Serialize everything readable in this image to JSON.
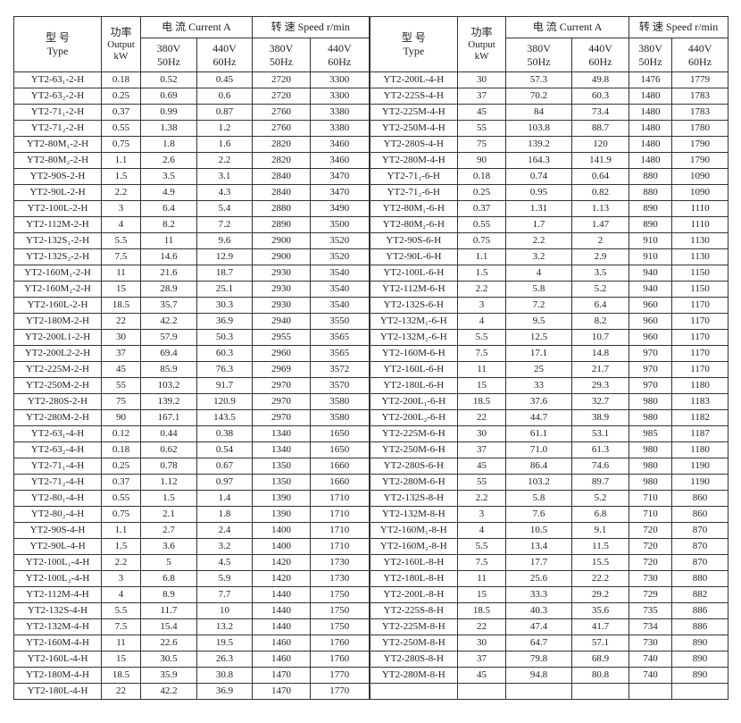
{
  "left": {
    "header": {
      "type": [
        "型 号",
        "Type"
      ],
      "power": [
        "功率",
        "Output",
        "kW"
      ],
      "current": "电 流 Current A",
      "speed": "转 速 Speed r/min",
      "v380": [
        "380V",
        "50Hz"
      ],
      "v440": [
        "440V",
        "60Hz"
      ]
    },
    "rows": [
      [
        "YT2-63₁-2-H",
        "0.18",
        "0.52",
        "0.45",
        "2720",
        "3300"
      ],
      [
        "YT2-63₂-2-H",
        "0.25",
        "0.69",
        "0.6",
        "2720",
        "3300"
      ],
      [
        "YT2-71₁-2-H",
        "0.37",
        "0.99",
        "0.87",
        "2760",
        "3380"
      ],
      [
        "YT2-71₂-2-H",
        "0.55",
        "1.38",
        "1.2",
        "2760",
        "3380"
      ],
      [
        "YT2-80M₁-2-H",
        "0.75",
        "1.8",
        "1.6",
        "2820",
        "3460"
      ],
      [
        "YT2-80M₂-2-H",
        "1.1",
        "2.6",
        "2.2",
        "2820",
        "3460"
      ],
      [
        "YT2-90S-2-H",
        "1.5",
        "3.5",
        "3.1",
        "2840",
        "3470"
      ],
      [
        "YT2-90L-2-H",
        "2.2",
        "4.9",
        "4.3",
        "2840",
        "3470"
      ],
      [
        "YT2-100L-2-H",
        "3",
        "6.4",
        "5.4",
        "2880",
        "3490"
      ],
      [
        "YT2-112M-2-H",
        "4",
        "8.2",
        "7.2",
        "2890",
        "3500"
      ],
      [
        "YT2-132S₁-2-H",
        "5.5",
        "11",
        "9.6",
        "2900",
        "3520"
      ],
      [
        "YT2-132S₂-2-H",
        "7.5",
        "14.6",
        "12.9",
        "2900",
        "3520"
      ],
      [
        "YT2-160M₁-2-H",
        "11",
        "21.6",
        "18.7",
        "2930",
        "3540"
      ],
      [
        "YT2-160M₂-2-H",
        "15",
        "28.9",
        "25.1",
        "2930",
        "3540"
      ],
      [
        "YT2-160L-2-H",
        "18.5",
        "35.7",
        "30.3",
        "2930",
        "3540"
      ],
      [
        "YT2-180M-2-H",
        "22",
        "42.2",
        "36.9",
        "2940",
        "3550"
      ],
      [
        "YT2-200L1-2-H",
        "30",
        "57.9",
        "50.3",
        "2955",
        "3565"
      ],
      [
        "YT2-200L2-2-H",
        "37",
        "69.4",
        "60.3",
        "2960",
        "3565"
      ],
      [
        "YT2-225M-2-H",
        "45",
        "85.9",
        "76.3",
        "2969",
        "3572"
      ],
      [
        "YT2-250M-2-H",
        "55",
        "103.2",
        "91.7",
        "2970",
        "3570"
      ],
      [
        "YT2-280S-2-H",
        "75",
        "139.2",
        "120.9",
        "2970",
        "3580"
      ],
      [
        "YT2-280M-2-H",
        "90",
        "167.1",
        "143.5",
        "2970",
        "3580"
      ],
      [
        "YT2-63₁-4-H",
        "0.12",
        "0.44",
        "0.38",
        "1340",
        "1650"
      ],
      [
        "YT2-63₂-4-H",
        "0.18",
        "0.62",
        "0.54",
        "1340",
        "1650"
      ],
      [
        "YT2-71₁-4-H",
        "0.25",
        "0.78",
        "0.67",
        "1350",
        "1660"
      ],
      [
        "YT2-71₂-4-H",
        "0.37",
        "1.12",
        "0.97",
        "1350",
        "1660"
      ],
      [
        "YT2-80₁-4-H",
        "0.55",
        "1.5",
        "1.4",
        "1390",
        "1710"
      ],
      [
        "YT2-80₂-4-H",
        "0.75",
        "2.1",
        "1.8",
        "1390",
        "1710"
      ],
      [
        "YT2-90S-4-H",
        "1.1",
        "2.7",
        "2.4",
        "1400",
        "1710"
      ],
      [
        "YT2-90L-4-H",
        "1.5",
        "3.6",
        "3.2",
        "1400",
        "1710"
      ],
      [
        "YT2-100L₁-4-H",
        "2.2",
        "5",
        "4.5",
        "1420",
        "1730"
      ],
      [
        "YT2-100L₂-4-H",
        "3",
        "6.8",
        "5.9",
        "1420",
        "1730"
      ],
      [
        "YT2-112M-4-H",
        "4",
        "8.9",
        "7.7",
        "1440",
        "1750"
      ],
      [
        "YT2-132S-4-H",
        "5.5",
        "11.7",
        "10",
        "1440",
        "1750"
      ],
      [
        "YT2-132M-4-H",
        "7.5",
        "15.4",
        "13.2",
        "1440",
        "1750"
      ],
      [
        "YT2-160M-4-H",
        "11",
        "22.6",
        "19.5",
        "1460",
        "1760"
      ],
      [
        "YT2-160L-4-H",
        "15",
        "30.5",
        "26.3",
        "1460",
        "1760"
      ],
      [
        "YT2-180M-4-H",
        "18.5",
        "35.9",
        "30.8",
        "1470",
        "1770"
      ],
      [
        "YT2-180L-4-H",
        "22",
        "42.2",
        "36.9",
        "1470",
        "1770"
      ]
    ]
  },
  "right": {
    "header": {
      "type": [
        "型 号",
        "Type"
      ],
      "power": [
        "功率",
        "Output",
        "kW"
      ],
      "current": "电 流 Current A",
      "speed": "转 速 Speed r/min",
      "v380": [
        "380V",
        "50Hz"
      ],
      "v440": [
        "440V",
        "60Hz"
      ]
    },
    "rows": [
      [
        "YT2-200L-4-H",
        "30",
        "57.3",
        "49.8",
        "1476",
        "1779"
      ],
      [
        "YT2-225S-4-H",
        "37",
        "70.2",
        "60.3",
        "1480",
        "1783"
      ],
      [
        "YT2-225M-4-H",
        "45",
        "84",
        "73.4",
        "1480",
        "1783"
      ],
      [
        "YT2-250M-4-H",
        "55",
        "103.8",
        "88.7",
        "1480",
        "1780"
      ],
      [
        "YT2-280S-4-H",
        "75",
        "139.2",
        "120",
        "1480",
        "1790"
      ],
      [
        "YT2-280M-4-H",
        "90",
        "164.3",
        "141.9",
        "1480",
        "1790"
      ],
      [
        "YT2-71₁-6-H",
        "0.18",
        "0.74",
        "0.64",
        "880",
        "1090"
      ],
      [
        "YT2-71₂-6-H",
        "0.25",
        "0.95",
        "0.82",
        "880",
        "1090"
      ],
      [
        "YT2-80M₁-6-H",
        "0.37",
        "1.31",
        "1.13",
        "890",
        "1110"
      ],
      [
        "YT2-80M₂-6-H",
        "0.55",
        "1.7",
        "1.47",
        "890",
        "1110"
      ],
      [
        "YT2-90S-6-H",
        "0.75",
        "2.2",
        "2",
        "910",
        "1130"
      ],
      [
        "YT2-90L-6-H",
        "1.1",
        "3.2",
        "2.9",
        "910",
        "1130"
      ],
      [
        "YT2-100L-6-H",
        "1.5",
        "4",
        "3.5",
        "940",
        "1150"
      ],
      [
        "YT2-112M-6-H",
        "2.2",
        "5.8",
        "5.2",
        "940",
        "1150"
      ],
      [
        "YT2-132S-6-H",
        "3",
        "7.2",
        "6.4",
        "960",
        "1170"
      ],
      [
        "YT2-132M₁-6-H",
        "4",
        "9.5",
        "8.2",
        "960",
        "1170"
      ],
      [
        "YT2-132M₂-6-H",
        "5.5",
        "12.5",
        "10.7",
        "960",
        "1170"
      ],
      [
        "YT2-160M-6-H",
        "7.5",
        "17.1",
        "14.8",
        "970",
        "1170"
      ],
      [
        "YT2-160L-6-H",
        "11",
        "25",
        "21.7",
        "970",
        "1170"
      ],
      [
        "YT2-180L-6-H",
        "15",
        "33",
        "29.3",
        "970",
        "1180"
      ],
      [
        "YT2-200L₁-6-H",
        "18.5",
        "37.6",
        "32.7",
        "980",
        "1183"
      ],
      [
        "YT2-200L₂-6-H",
        "22",
        "44.7",
        "38.9",
        "980",
        "1182"
      ],
      [
        "YT2-225M-6-H",
        "30",
        "61.1",
        "53.1",
        "985",
        "1187"
      ],
      [
        "YT2-250M-6-H",
        "37",
        "71.0",
        "61.3",
        "980",
        "1180"
      ],
      [
        "YT2-280S-6-H",
        "45",
        "86.4",
        "74.6",
        "980",
        "1190"
      ],
      [
        "YT2-280M-6-H",
        "55",
        "103.2",
        "89.7",
        "980",
        "1190"
      ],
      [
        "YT2-132S-8-H",
        "2.2",
        "5.8",
        "5.2",
        "710",
        "860"
      ],
      [
        "YT2-132M-8-H",
        "3",
        "7.6",
        "6.8",
        "710",
        "860"
      ],
      [
        "YT2-160M₁-8-H",
        "4",
        "10.5",
        "9.1",
        "720",
        "870"
      ],
      [
        "YT2-160M₂-8-H",
        "5.5",
        "13.4",
        "11.5",
        "720",
        "870"
      ],
      [
        "YT2-160L-8-H",
        "7.5",
        "17.7",
        "15.5",
        "720",
        "870"
      ],
      [
        "YT2-180L-8-H",
        "11",
        "25.6",
        "22.2",
        "730",
        "880"
      ],
      [
        "YT2-200L-8-H",
        "15",
        "33.3",
        "29.2",
        "729",
        "882"
      ],
      [
        "YT2-225S-8-H",
        "18.5",
        "40.3",
        "35.6",
        "735",
        "886"
      ],
      [
        "YT2-225M-8-H",
        "22",
        "47.4",
        "41.7",
        "734",
        "886"
      ],
      [
        "YT2-250M-8-H",
        "30",
        "64.7",
        "57.1",
        "730",
        "890"
      ],
      [
        "YT2-280S-8-H",
        "37",
        "79.8",
        "68.9",
        "740",
        "890"
      ],
      [
        "YT2-280M-8-H",
        "45",
        "94.8",
        "80.8",
        "740",
        "890"
      ]
    ]
  }
}
